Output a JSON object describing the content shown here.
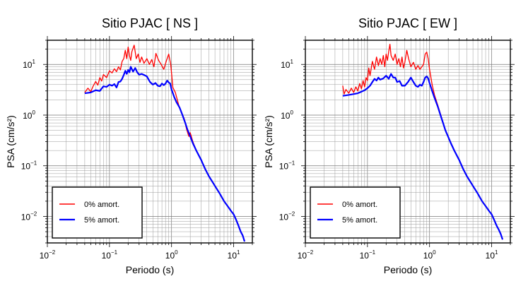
{
  "chart_data": [
    {
      "type": "line",
      "title": "Sitio PJAC [ NS ]",
      "xlabel": "Periodo (s)",
      "ylabel": "PSA (cm/s²)",
      "xscale": "log",
      "yscale": "log",
      "xlim": [
        0.01,
        20
      ],
      "ylim": [
        0.003,
        30
      ],
      "grid": true,
      "legend_position": "bottom-left",
      "x_ticks": [
        {
          "base": "10",
          "exp": "−2"
        },
        {
          "base": "10",
          "exp": "−1"
        },
        {
          "base": "10",
          "exp": "0"
        },
        {
          "base": "10",
          "exp": "1"
        }
      ],
      "y_ticks": [
        {
          "base": "10",
          "exp": "−2"
        },
        {
          "base": "10",
          "exp": "−1"
        },
        {
          "base": "10",
          "exp": "0"
        },
        {
          "base": "10",
          "exp": "1"
        }
      ],
      "series": [
        {
          "name": "0% amort.",
          "color": "#ff0000",
          "points": [
            [
              0.04,
              2.8
            ],
            [
              0.045,
              3.4
            ],
            [
              0.05,
              2.9
            ],
            [
              0.055,
              3.8
            ],
            [
              0.06,
              4.6
            ],
            [
              0.065,
              3.9
            ],
            [
              0.07,
              5.5
            ],
            [
              0.075,
              4.7
            ],
            [
              0.08,
              6.3
            ],
            [
              0.09,
              5.5
            ],
            [
              0.1,
              7.5
            ],
            [
              0.11,
              6.8
            ],
            [
              0.12,
              8.2
            ],
            [
              0.13,
              7.2
            ],
            [
              0.14,
              9.0
            ],
            [
              0.15,
              7.8
            ],
            [
              0.16,
              11.5
            ],
            [
              0.17,
              13.0
            ],
            [
              0.18,
              19.0
            ],
            [
              0.19,
              13.0
            ],
            [
              0.2,
              22.0
            ],
            [
              0.21,
              15.0
            ],
            [
              0.22,
              12.0
            ],
            [
              0.23,
              18.0
            ],
            [
              0.25,
              24.0
            ],
            [
              0.27,
              13.0
            ],
            [
              0.29,
              16.0
            ],
            [
              0.31,
              11.0
            ],
            [
              0.33,
              14.0
            ],
            [
              0.36,
              10.5
            ],
            [
              0.4,
              13.0
            ],
            [
              0.44,
              10.0
            ],
            [
              0.48,
              12.5
            ],
            [
              0.52,
              9.0
            ],
            [
              0.56,
              16.5
            ],
            [
              0.62,
              12.0
            ],
            [
              0.68,
              10.0
            ],
            [
              0.75,
              8.0
            ],
            [
              0.82,
              11.5
            ],
            [
              0.9,
              16.0
            ],
            [
              0.97,
              10.0
            ],
            [
              1.05,
              3.5
            ],
            [
              1.15,
              2.8
            ],
            [
              1.3,
              1.6
            ],
            [
              1.45,
              1.1
            ],
            [
              1.6,
              0.85
            ],
            [
              1.75,
              0.52
            ],
            [
              1.9,
              0.38
            ],
            [
              2.0,
              0.45
            ],
            [
              2.2,
              0.3
            ],
            [
              2.5,
              0.2
            ],
            [
              3.0,
              0.13
            ],
            [
              3.5,
              0.085
            ],
            [
              4.0,
              0.062
            ],
            [
              5.0,
              0.04
            ],
            [
              6.0,
              0.028
            ],
            [
              7.0,
              0.02
            ],
            [
              8.0,
              0.016
            ],
            [
              9.0,
              0.013
            ],
            [
              10.0,
              0.011
            ],
            [
              11.0,
              0.0085
            ],
            [
              12.0,
              0.0065
            ],
            [
              13.0,
              0.005
            ],
            [
              14.0,
              0.0042
            ],
            [
              15.0,
              0.0032
            ]
          ]
        },
        {
          "name": "5% amort.",
          "color": "#0000ff",
          "points": [
            [
              0.04,
              2.7
            ],
            [
              0.05,
              2.8
            ],
            [
              0.06,
              3.1
            ],
            [
              0.07,
              3.0
            ],
            [
              0.08,
              3.7
            ],
            [
              0.09,
              3.6
            ],
            [
              0.1,
              4.0
            ],
            [
              0.11,
              3.8
            ],
            [
              0.12,
              4.1
            ],
            [
              0.13,
              3.5
            ],
            [
              0.14,
              4.5
            ],
            [
              0.15,
              4.6
            ],
            [
              0.16,
              5.2
            ],
            [
              0.17,
              6.2
            ],
            [
              0.18,
              7.5
            ],
            [
              0.19,
              6.5
            ],
            [
              0.2,
              7.8
            ],
            [
              0.21,
              7.0
            ],
            [
              0.22,
              9.0
            ],
            [
              0.24,
              7.2
            ],
            [
              0.26,
              8.5
            ],
            [
              0.28,
              7.0
            ],
            [
              0.3,
              6.3
            ],
            [
              0.33,
              6.5
            ],
            [
              0.36,
              6.2
            ],
            [
              0.4,
              5.8
            ],
            [
              0.45,
              4.5
            ],
            [
              0.5,
              4.0
            ],
            [
              0.55,
              4.3
            ],
            [
              0.6,
              3.8
            ],
            [
              0.65,
              3.7
            ],
            [
              0.7,
              4.2
            ],
            [
              0.75,
              3.9
            ],
            [
              0.8,
              4.2
            ],
            [
              0.85,
              4.8
            ],
            [
              0.9,
              4.4
            ],
            [
              0.95,
              4.2
            ],
            [
              1.0,
              3.2
            ],
            [
              1.1,
              2.3
            ],
            [
              1.2,
              1.8
            ],
            [
              1.35,
              1.4
            ],
            [
              1.5,
              1.0
            ],
            [
              1.65,
              0.72
            ],
            [
              1.8,
              0.52
            ],
            [
              2.0,
              0.38
            ],
            [
              2.2,
              0.28
            ],
            [
              2.5,
              0.2
            ],
            [
              3.0,
              0.13
            ],
            [
              3.5,
              0.085
            ],
            [
              4.0,
              0.062
            ],
            [
              5.0,
              0.04
            ],
            [
              6.0,
              0.028
            ],
            [
              7.0,
              0.02
            ],
            [
              8.0,
              0.016
            ],
            [
              9.0,
              0.013
            ],
            [
              10.0,
              0.011
            ],
            [
              11.0,
              0.0085
            ],
            [
              12.0,
              0.0065
            ],
            [
              13.0,
              0.005
            ],
            [
              14.0,
              0.0042
            ],
            [
              15.0,
              0.0032
            ]
          ]
        }
      ]
    },
    {
      "type": "line",
      "title": "Sitio PJAC [ EW ]",
      "xlabel": "Periodo (s)",
      "ylabel": "PSA (cm/s²)",
      "xscale": "log",
      "yscale": "log",
      "xlim": [
        0.01,
        20
      ],
      "ylim": [
        0.003,
        30
      ],
      "grid": true,
      "legend_position": "bottom-left",
      "x_ticks": [
        {
          "base": "10",
          "exp": "−2"
        },
        {
          "base": "10",
          "exp": "−1"
        },
        {
          "base": "10",
          "exp": "0"
        },
        {
          "base": "10",
          "exp": "1"
        }
      ],
      "y_ticks": [
        {
          "base": "10",
          "exp": "−2"
        },
        {
          "base": "10",
          "exp": "−1"
        },
        {
          "base": "10",
          "exp": "0"
        },
        {
          "base": "10",
          "exp": "1"
        }
      ],
      "series": [
        {
          "name": "0% amort.",
          "color": "#ff0000",
          "points": [
            [
              0.04,
              3.8
            ],
            [
              0.042,
              2.6
            ],
            [
              0.045,
              3.2
            ],
            [
              0.05,
              2.7
            ],
            [
              0.055,
              3.4
            ],
            [
              0.06,
              2.8
            ],
            [
              0.065,
              3.6
            ],
            [
              0.07,
              3.0
            ],
            [
              0.075,
              4.2
            ],
            [
              0.08,
              3.3
            ],
            [
              0.085,
              4.8
            ],
            [
              0.09,
              3.6
            ],
            [
              0.095,
              5.5
            ],
            [
              0.1,
              4.8
            ],
            [
              0.105,
              8.5
            ],
            [
              0.11,
              6.0
            ],
            [
              0.12,
              11.5
            ],
            [
              0.13,
              8.0
            ],
            [
              0.14,
              14.0
            ],
            [
              0.15,
              9.5
            ],
            [
              0.16,
              13.0
            ],
            [
              0.17,
              10.0
            ],
            [
              0.18,
              15.0
            ],
            [
              0.19,
              9.0
            ],
            [
              0.2,
              16.0
            ],
            [
              0.21,
              12.0
            ],
            [
              0.22,
              18.0
            ],
            [
              0.23,
              25.0
            ],
            [
              0.24,
              15.0
            ],
            [
              0.26,
              12.0
            ],
            [
              0.28,
              16.0
            ],
            [
              0.3,
              10.0
            ],
            [
              0.32,
              13.0
            ],
            [
              0.34,
              9.0
            ],
            [
              0.36,
              14.0
            ],
            [
              0.38,
              8.5
            ],
            [
              0.4,
              11.0
            ],
            [
              0.43,
              19.0
            ],
            [
              0.46,
              13.0
            ],
            [
              0.5,
              9.0
            ],
            [
              0.55,
              11.0
            ],
            [
              0.6,
              8.0
            ],
            [
              0.65,
              9.5
            ],
            [
              0.7,
              8.0
            ],
            [
              0.8,
              10.0
            ],
            [
              0.85,
              16.0
            ],
            [
              0.9,
              17.5
            ],
            [
              0.95,
              13.0
            ],
            [
              1.0,
              8.0
            ],
            [
              1.1,
              4.0
            ],
            [
              1.2,
              2.5
            ],
            [
              1.35,
              1.6
            ],
            [
              1.5,
              1.05
            ],
            [
              1.65,
              0.7
            ],
            [
              1.8,
              0.5
            ],
            [
              2.0,
              0.38
            ],
            [
              2.2,
              0.28
            ],
            [
              2.5,
              0.2
            ],
            [
              3.0,
              0.13
            ],
            [
              3.5,
              0.085
            ],
            [
              4.0,
              0.062
            ],
            [
              5.0,
              0.04
            ],
            [
              6.0,
              0.028
            ],
            [
              7.0,
              0.02
            ],
            [
              8.0,
              0.016
            ],
            [
              9.0,
              0.013
            ],
            [
              10.0,
              0.011
            ],
            [
              11.0,
              0.0085
            ],
            [
              12.0,
              0.0066
            ],
            [
              13.0,
              0.0055
            ],
            [
              14.0,
              0.0045
            ],
            [
              15.0,
              0.0035
            ]
          ]
        },
        {
          "name": "5% amort.",
          "color": "#0000ff",
          "points": [
            [
              0.04,
              2.4
            ],
            [
              0.05,
              2.5
            ],
            [
              0.06,
              2.6
            ],
            [
              0.07,
              2.7
            ],
            [
              0.08,
              2.9
            ],
            [
              0.09,
              3.1
            ],
            [
              0.1,
              3.4
            ],
            [
              0.11,
              3.8
            ],
            [
              0.12,
              4.5
            ],
            [
              0.13,
              5.2
            ],
            [
              0.14,
              4.8
            ],
            [
              0.15,
              5.5
            ],
            [
              0.16,
              5.0
            ],
            [
              0.18,
              5.3
            ],
            [
              0.2,
              6.0
            ],
            [
              0.22,
              5.2
            ],
            [
              0.24,
              6.5
            ],
            [
              0.26,
              5.5
            ],
            [
              0.28,
              5.5
            ],
            [
              0.3,
              4.5
            ],
            [
              0.33,
              4.7
            ],
            [
              0.36,
              3.8
            ],
            [
              0.4,
              3.8
            ],
            [
              0.45,
              4.5
            ],
            [
              0.5,
              5.5
            ],
            [
              0.55,
              4.5
            ],
            [
              0.6,
              3.8
            ],
            [
              0.65,
              3.6
            ],
            [
              0.7,
              4.0
            ],
            [
              0.75,
              3.8
            ],
            [
              0.8,
              4.5
            ],
            [
              0.85,
              5.5
            ],
            [
              0.9,
              5.8
            ],
            [
              0.95,
              5.3
            ],
            [
              1.0,
              4.3
            ],
            [
              1.1,
              3.0
            ],
            [
              1.2,
              2.2
            ],
            [
              1.35,
              1.5
            ],
            [
              1.5,
              1.0
            ],
            [
              1.65,
              0.7
            ],
            [
              1.8,
              0.5
            ],
            [
              2.0,
              0.37
            ],
            [
              2.2,
              0.28
            ],
            [
              2.5,
              0.2
            ],
            [
              3.0,
              0.13
            ],
            [
              3.5,
              0.085
            ],
            [
              4.0,
              0.062
            ],
            [
              5.0,
              0.04
            ],
            [
              6.0,
              0.028
            ],
            [
              7.0,
              0.02
            ],
            [
              8.0,
              0.016
            ],
            [
              9.0,
              0.013
            ],
            [
              10.0,
              0.011
            ],
            [
              11.0,
              0.0085
            ],
            [
              12.0,
              0.0066
            ],
            [
              13.0,
              0.0055
            ],
            [
              14.0,
              0.0045
            ],
            [
              15.0,
              0.0035
            ]
          ]
        }
      ]
    }
  ]
}
